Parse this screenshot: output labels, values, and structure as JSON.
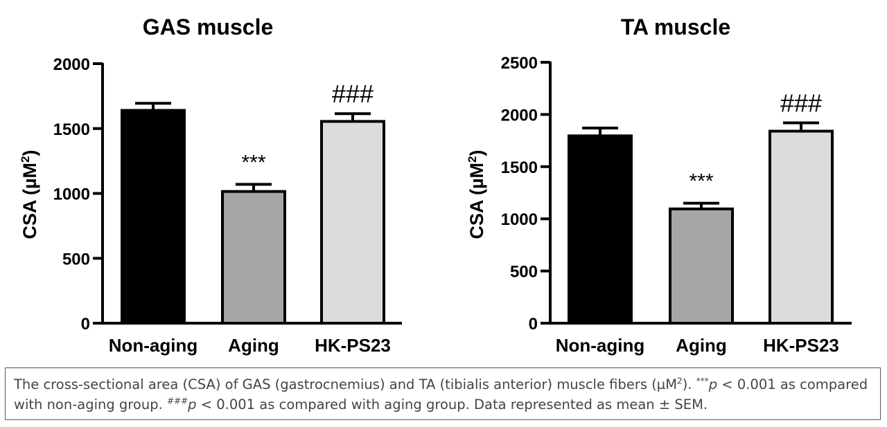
{
  "chart_data": [
    {
      "type": "bar",
      "title": "GAS muscle",
      "ylabel": "CSA (µM",
      "ylabel_sup": "2",
      "ylabel_close": ")",
      "categories": [
        "Non-aging",
        "Aging",
        "HK-PS23"
      ],
      "values": [
        1640,
        1015,
        1555
      ],
      "errors": [
        55,
        55,
        60
      ],
      "colors": [
        "#000000",
        "#a6a6a8",
        "#dcdcdc"
      ],
      "annotations": [
        "",
        "***",
        "###"
      ],
      "ylim": [
        0,
        2000
      ],
      "yticks": [
        0,
        500,
        1000,
        1500,
        2000
      ],
      "ytick_labels": [
        "0",
        "500",
        "1000",
        "1500",
        "2000"
      ]
    },
    {
      "type": "bar",
      "title": "TA muscle",
      "ylabel": "CSA (µM",
      "ylabel_sup": "2",
      "ylabel_close": ")",
      "categories": [
        "Non-aging",
        "Aging",
        "HK-PS23"
      ],
      "values": [
        1795,
        1095,
        1840
      ],
      "errors": [
        75,
        55,
        80
      ],
      "colors": [
        "#000000",
        "#a6a6a8",
        "#dcdcdc"
      ],
      "annotations": [
        "",
        "***",
        "###"
      ],
      "ylim": [
        0,
        2500
      ],
      "yticks": [
        0,
        500,
        1000,
        1500,
        2000,
        2500
      ],
      "ytick_labels": [
        "0",
        "500",
        "1000",
        "1500",
        "2000",
        "2500"
      ]
    }
  ],
  "caption": {
    "part1": "The cross-sectional area (CSA) of GAS (gastrocnemius) and TA (tibialis anterior) muscle fibers (µM",
    "sup_unit": "2",
    "part2": "). ",
    "sup_stars": "***",
    "p_italic": "p",
    "part3": " < 0.001 as compared with non-aging group. ",
    "sup_hash": "###",
    "part4": " < 0.001 as compared with aging group. Data represented as mean ± SEM."
  }
}
